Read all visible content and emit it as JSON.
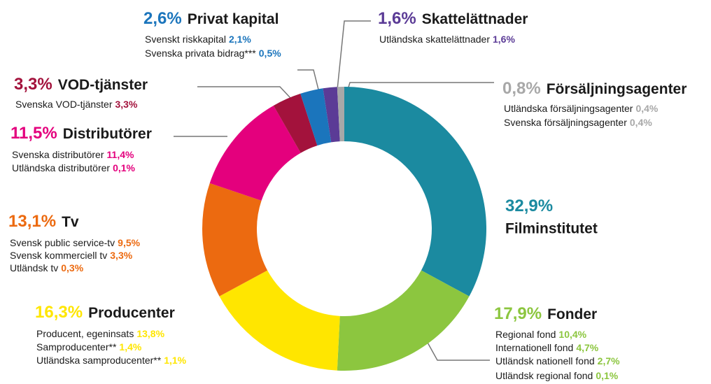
{
  "chart_data": {
    "type": "donut",
    "categories": [
      "Filminstitutet",
      "Fonder",
      "Producenter",
      "Tv",
      "Distributörer",
      "VOD-tjänster",
      "Privat kapital",
      "Skattelättnader",
      "Försäljningsagenter"
    ],
    "values": [
      32.9,
      17.9,
      16.3,
      13.1,
      11.5,
      3.3,
      2.6,
      1.6,
      0.8
    ],
    "value_labels": [
      "32,9%",
      "17,9%",
      "16,3%",
      "13,1%",
      "11,5%",
      "3,3%",
      "2,6%",
      "1,6%",
      "0,8%"
    ],
    "colors": [
      "#1b8aa0",
      "#8cc63f",
      "#ffe600",
      "#ec6a10",
      "#e4007d",
      "#a3123c",
      "#1b75bc",
      "#5b3b96",
      "#a8a8a8"
    ],
    "breakdown": [
      [],
      [
        {
          "name": "Regional fond",
          "value": 10.4,
          "value_label": "10,4%"
        },
        {
          "name": "Internationell fond",
          "value": 4.7,
          "value_label": "4,7%"
        },
        {
          "name": "Utländsk nationell fond",
          "value": 2.7,
          "value_label": "2,7%"
        },
        {
          "name": "Utländsk regional fond",
          "value": 0.1,
          "value_label": "0,1%"
        }
      ],
      [
        {
          "name": "Producent, egeninsats",
          "value": 13.8,
          "value_label": "13,8%"
        },
        {
          "name": "Samproducenter**",
          "value": 1.4,
          "value_label": "1,4%"
        },
        {
          "name": "Utländska samproducenter**",
          "value": 1.1,
          "value_label": "1,1%"
        }
      ],
      [
        {
          "name": "Svensk public service-tv",
          "value": 9.5,
          "value_label": "9,5%"
        },
        {
          "name": "Svensk kommerciell tv",
          "value": 3.3,
          "value_label": "3,3%"
        },
        {
          "name": "Utländsk tv",
          "value": 0.3,
          "value_label": "0,3%"
        }
      ],
      [
        {
          "name": "Svenska distributörer",
          "value": 11.4,
          "value_label": "11,4%"
        },
        {
          "name": "Utländska distributörer",
          "value": 0.1,
          "value_label": "0,1%"
        }
      ],
      [
        {
          "name": "Svenska VOD-tjänster",
          "value": 3.3,
          "value_label": "3,3%"
        }
      ],
      [
        {
          "name": "Svenskt riskkapital",
          "value": 2.1,
          "value_label": "2,1%"
        },
        {
          "name": "Svenska privata bidrag***",
          "value": 0.5,
          "value_label": "0,5%"
        }
      ],
      [
        {
          "name": "Utländska skattelättnader",
          "value": 1.6,
          "value_label": "1,6%"
        }
      ],
      [
        {
          "name": "Utländska försäljningsagenter",
          "value": 0.4,
          "value_label": "0,4%"
        },
        {
          "name": "Svenska försäljningsagenter",
          "value": 0.4,
          "value_label": "0,4%"
        }
      ]
    ]
  }
}
